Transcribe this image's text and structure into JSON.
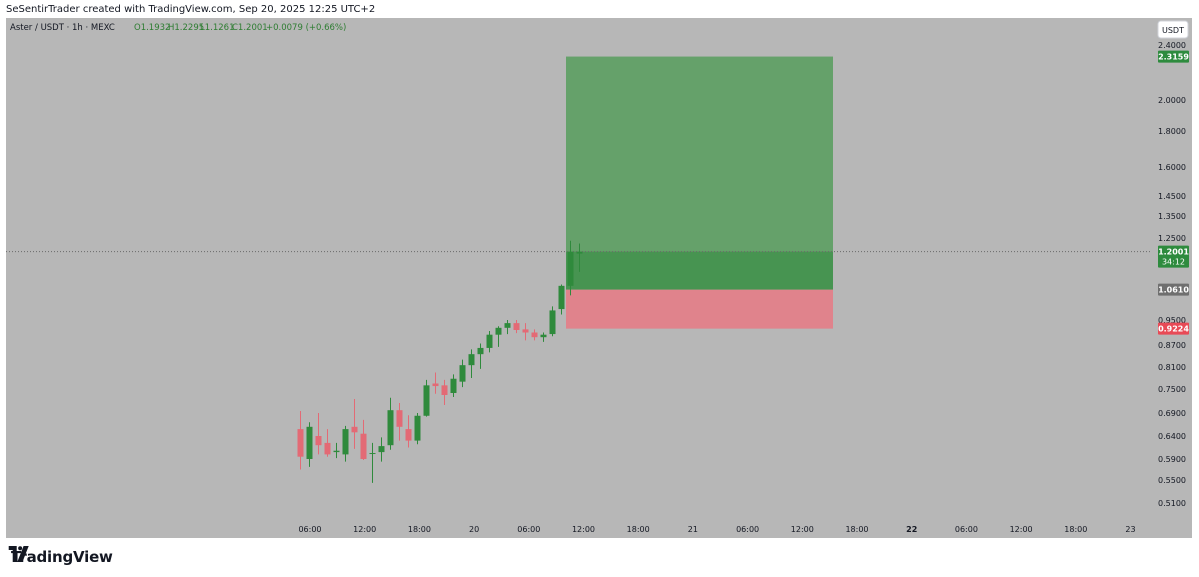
{
  "header": {
    "attribution": "SeSentirTrader created with TradingView.com, Sep 20, 2025 12:25 UTC+2"
  },
  "footer": {
    "brand": "TradingView",
    "logo_icon": "tradingview-logo-icon"
  },
  "chart_data": {
    "type": "candlestick",
    "legend": {
      "symbol": "Aster / USDT · 1h · MEXC",
      "open": "O1.1932",
      "high": "H1.2295",
      "low": "L1.1261",
      "close": "C1.2001",
      "change": "+0.0079 (+0.66%)"
    },
    "currency_button": "USDT",
    "price_axis_ticks": [
      "2.4000",
      "2.0000",
      "1.8000",
      "1.6000",
      "1.4500",
      "1.3500",
      "1.2500",
      "0.9500",
      "0.8700",
      "0.8100",
      "0.7500",
      "0.6900",
      "0.6400",
      "0.5900",
      "0.5500",
      "0.5100"
    ],
    "price_tags": [
      {
        "label": "2.3159",
        "color": "#2e8b3e"
      },
      {
        "label": "1.2001",
        "color": "#2e8b3e"
      },
      {
        "label": "34:12",
        "color": "#2e8b3e"
      },
      {
        "label": "1.0610",
        "color": "#6f6f6f"
      },
      {
        "label": "0.9224",
        "color": "#e84a56"
      }
    ],
    "time_axis_ticks": [
      "06:00",
      "12:00",
      "18:00",
      "20",
      "06:00",
      "12:00",
      "18:00",
      "21",
      "06:00",
      "12:00",
      "18:00",
      "22",
      "06:00",
      "12:00",
      "18:00",
      "23"
    ],
    "time_axis_bold": [
      "22"
    ],
    "current_price": 1.2001,
    "position": {
      "type": "long",
      "entry": 1.061,
      "target": 2.3159,
      "stop": 0.9224
    },
    "candles": [
      {
        "o": 0.655,
        "h": 0.695,
        "l": 0.57,
        "c": 0.595
      },
      {
        "o": 0.59,
        "h": 0.67,
        "l": 0.575,
        "c": 0.66
      },
      {
        "o": 0.64,
        "h": 0.69,
        "l": 0.6,
        "c": 0.62
      },
      {
        "o": 0.625,
        "h": 0.655,
        "l": 0.595,
        "c": 0.6
      },
      {
        "o": 0.605,
        "h": 0.625,
        "l": 0.592,
        "c": 0.608
      },
      {
        "o": 0.6,
        "h": 0.662,
        "l": 0.585,
        "c": 0.655
      },
      {
        "o": 0.66,
        "h": 0.725,
        "l": 0.612,
        "c": 0.648
      },
      {
        "o": 0.645,
        "h": 0.675,
        "l": 0.588,
        "c": 0.59
      },
      {
        "o": 0.602,
        "h": 0.625,
        "l": 0.545,
        "c": 0.603
      },
      {
        "o": 0.605,
        "h": 0.637,
        "l": 0.585,
        "c": 0.618
      },
      {
        "o": 0.62,
        "h": 0.728,
        "l": 0.61,
        "c": 0.697
      },
      {
        "o": 0.697,
        "h": 0.715,
        "l": 0.63,
        "c": 0.66
      },
      {
        "o": 0.655,
        "h": 0.685,
        "l": 0.615,
        "c": 0.63
      },
      {
        "o": 0.63,
        "h": 0.69,
        "l": 0.622,
        "c": 0.684
      },
      {
        "o": 0.684,
        "h": 0.775,
        "l": 0.682,
        "c": 0.76
      },
      {
        "o": 0.765,
        "h": 0.795,
        "l": 0.738,
        "c": 0.758
      },
      {
        "o": 0.76,
        "h": 0.775,
        "l": 0.71,
        "c": 0.735
      },
      {
        "o": 0.74,
        "h": 0.79,
        "l": 0.73,
        "c": 0.778
      },
      {
        "o": 0.77,
        "h": 0.83,
        "l": 0.755,
        "c": 0.815
      },
      {
        "o": 0.815,
        "h": 0.858,
        "l": 0.78,
        "c": 0.845
      },
      {
        "o": 0.845,
        "h": 0.875,
        "l": 0.805,
        "c": 0.862
      },
      {
        "o": 0.862,
        "h": 0.915,
        "l": 0.85,
        "c": 0.903
      },
      {
        "o": 0.903,
        "h": 0.93,
        "l": 0.865,
        "c": 0.925
      },
      {
        "o": 0.925,
        "h": 0.95,
        "l": 0.905,
        "c": 0.94
      },
      {
        "o": 0.94,
        "h": 0.95,
        "l": 0.908,
        "c": 0.918
      },
      {
        "o": 0.92,
        "h": 0.94,
        "l": 0.885,
        "c": 0.91
      },
      {
        "o": 0.91,
        "h": 0.92,
        "l": 0.885,
        "c": 0.895
      },
      {
        "o": 0.895,
        "h": 0.91,
        "l": 0.88,
        "c": 0.903
      },
      {
        "o": 0.905,
        "h": 1.0,
        "l": 0.898,
        "c": 0.985
      },
      {
        "o": 0.99,
        "h": 1.08,
        "l": 0.97,
        "c": 1.075
      },
      {
        "o": 1.075,
        "h": 1.24,
        "l": 1.04,
        "c": 1.2
      },
      {
        "o": 1.193,
        "h": 1.23,
        "l": 1.126,
        "c": 1.2
      }
    ]
  }
}
